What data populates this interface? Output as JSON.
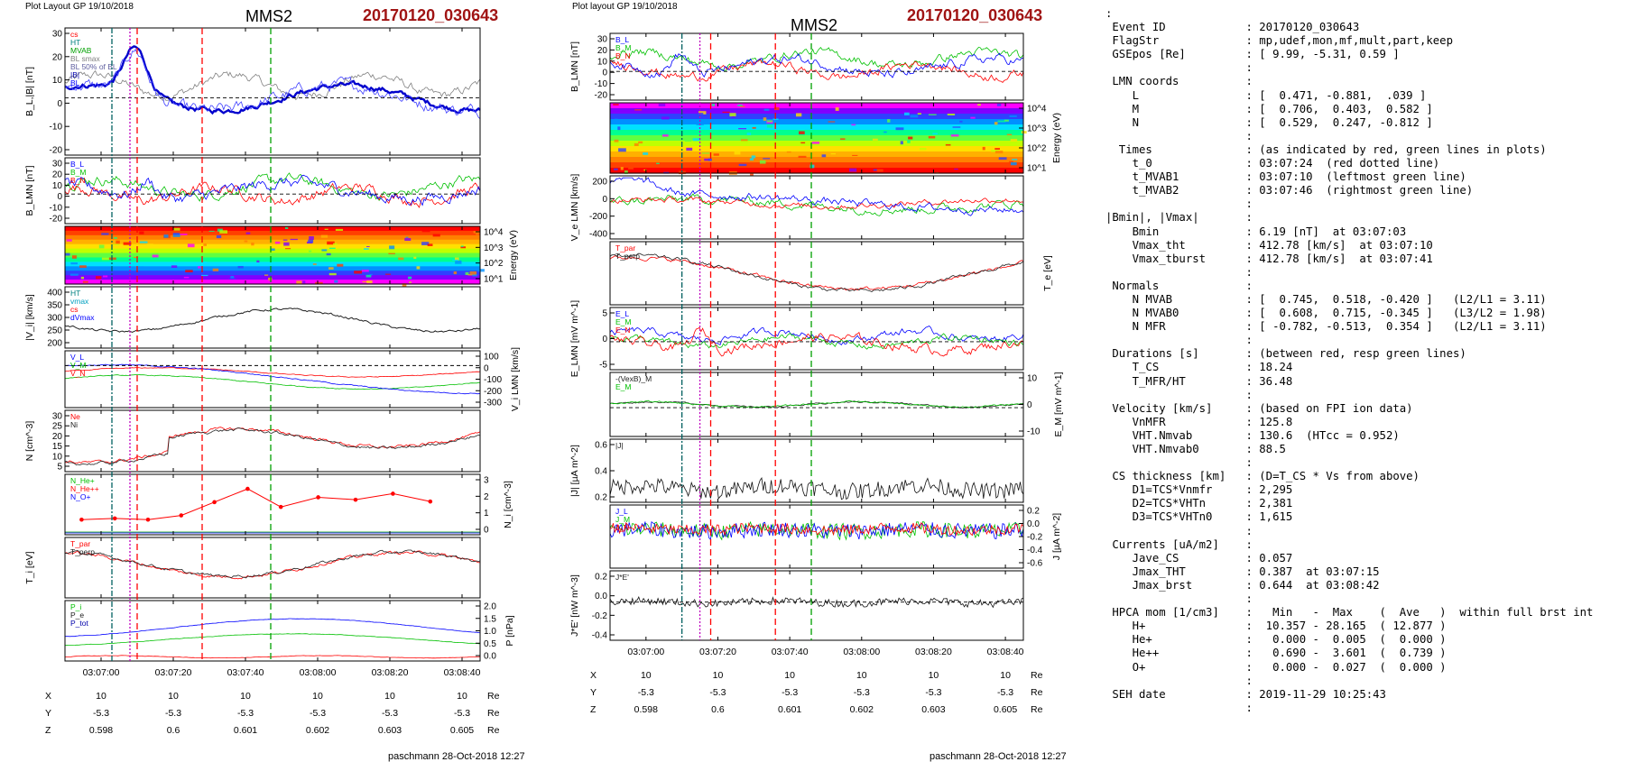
{
  "header": {
    "left_layout_label": "Plot Layout GP 19/10/2018",
    "middle_layout_label": "Plot layout GP 19/10/2018",
    "spacecraft": "MMS2",
    "event": "20170120_030643"
  },
  "footer": {
    "signature": "paschmann 28-Oct-2018 12:27"
  },
  "orbit_table": {
    "rows": [
      {
        "label": "X",
        "values": [
          "10",
          "10",
          "10",
          "10",
          "10",
          "10"
        ],
        "unit": "Re"
      },
      {
        "label": "Y",
        "values": [
          "-5.3",
          "-5.3",
          "-5.3",
          "-5.3",
          "-5.3",
          "-5.3"
        ],
        "unit": "Re"
      },
      {
        "label": "Z",
        "values": [
          "0.598",
          "0.6",
          "0.601",
          "0.602",
          "0.603",
          "0.605"
        ],
        "unit": "Re"
      }
    ]
  },
  "colors": {
    "event_red": "#a01414",
    "blue": "#0000ff",
    "red": "#ff0000",
    "green": "#00c000",
    "gray": "#808080"
  },
  "chart_data": [
    {
      "type": "line",
      "figure": "left",
      "x_axis": {
        "ticks": [
          "03:07:00",
          "03:07:20",
          "03:07:40",
          "03:08:00",
          "03:08:20",
          "03:08:40"
        ]
      },
      "markers": [
        {
          "kind": "dash-dot",
          "color": "#006060",
          "time": "03:07:03"
        },
        {
          "kind": "dotted",
          "color": "#c000c0",
          "time": "03:07:08"
        },
        {
          "kind": "dashed",
          "color": "#ff0000",
          "time": "03:07:10"
        },
        {
          "kind": "dashed",
          "color": "#ff0000",
          "time": "03:07:28"
        },
        {
          "kind": "dashed",
          "color": "#00a000",
          "time": "03:07:47"
        }
      ],
      "panels": [
        {
          "name": "b-magnitude",
          "ylabel": "B_L,|B| [nT]",
          "yticks": [
            "30",
            "20",
            "10",
            "0",
            "-10",
            "-20"
          ],
          "legend": [
            "cs",
            "HT",
            "MVAB",
            "BL smax",
            "BL 50% of BL",
            "|B|",
            "BL"
          ]
        },
        {
          "name": "b-lmn",
          "ylabel": "B_LMN [nT]",
          "yticks": [
            "30",
            "20",
            "10",
            "0",
            "-10",
            "-20"
          ],
          "legend": [
            "B_L",
            "B_M",
            "B_N"
          ]
        },
        {
          "name": "ion-spectrogram",
          "ylabel": "Energy (eV)",
          "yticks": [
            "10^4",
            "10^3",
            "10^2",
            "10^1"
          ]
        },
        {
          "name": "vi-magnitude",
          "ylabel": "|V_i| [km/s]",
          "yticks": [
            "400",
            "350",
            "300",
            "250",
            "200"
          ],
          "legend": [
            "HT",
            "vmax",
            "cs",
            "dVmax"
          ]
        },
        {
          "name": "vi-lmn",
          "ylabel": "V_i LMN [km/s]",
          "yticks": [
            "100",
            "0",
            "-100",
            "-200",
            "-300"
          ],
          "legend": [
            "V_L",
            "V_M",
            "V_N"
          ]
        },
        {
          "name": "density",
          "ylabel": "N [cm^-3]",
          "yticks": [
            "30",
            "25",
            "20",
            "15",
            "10",
            "5"
          ],
          "legend": [
            "Ne",
            "Ni"
          ]
        },
        {
          "name": "hpca-density",
          "ylabel": "N_i [cm^-3]",
          "yticks": [
            "3",
            "2",
            "1",
            "0"
          ],
          "legend": [
            "N_He+",
            "N_He++",
            "N_O+"
          ]
        },
        {
          "name": "ion-temperature",
          "ylabel": "T_i [eV]",
          "legend": [
            "T_par",
            "T_perp"
          ]
        },
        {
          "name": "pressure",
          "ylabel": "P [nPa]",
          "yticks": [
            "2.0",
            "1.5",
            "1.0",
            "0.5",
            "0.0"
          ],
          "legend": [
            "P_i",
            "P_e",
            "P_tot"
          ]
        }
      ]
    },
    {
      "type": "line",
      "figure": "middle",
      "x_axis": {
        "ticks": [
          "03:07:00",
          "03:07:20",
          "03:07:40",
          "03:08:00",
          "03:08:20",
          "03:08:40"
        ]
      },
      "markers": [
        {
          "kind": "dash-dot",
          "color": "#006060",
          "time": "03:07:10"
        },
        {
          "kind": "dotted",
          "color": "#c000c0",
          "time": "03:07:15"
        },
        {
          "kind": "dashed",
          "color": "#ff0000",
          "time": "03:07:18"
        },
        {
          "kind": "dashed",
          "color": "#ff0000",
          "time": "03:07:36"
        },
        {
          "kind": "dashed",
          "color": "#00a000",
          "time": "03:07:46"
        }
      ],
      "panels": [
        {
          "name": "b-lmn",
          "ylabel": "B_LMN [nT]",
          "yticks": [
            "30",
            "20",
            "10",
            "0",
            "-10",
            "-20"
          ],
          "legend": [
            "B_L",
            "B_M",
            "B_N"
          ]
        },
        {
          "name": "electron-spectrogram",
          "ylabel": "Energy (eV)",
          "yticks": [
            "10^4",
            "10^3",
            "10^2",
            "10^1"
          ]
        },
        {
          "name": "ve-lmn",
          "ylabel": "V_e LMN [km/s]",
          "yticks": [
            "200",
            "0",
            "-200",
            "-400"
          ]
        },
        {
          "name": "electron-temperature",
          "ylabel": "T_e [eV]",
          "legend": [
            "T_par",
            "T_perp"
          ]
        },
        {
          "name": "e-lmn",
          "ylabel": "E_LMN [mV m^-1]",
          "yticks": [
            "5",
            "0",
            "-5"
          ],
          "legend": [
            "E_L",
            "E_M",
            "E_N"
          ]
        },
        {
          "name": "em",
          "ylabel": "E_M [mV m^-1]",
          "yticks": [
            "10",
            "0",
            "-10"
          ],
          "legend": [
            "-(VexB)_M",
            "E_M"
          ]
        },
        {
          "name": "j-magnitude",
          "ylabel": "|J| [µA m^-2]",
          "yticks": [
            "0.6",
            "0.4",
            "0.2"
          ],
          "legend": [
            "|J|"
          ]
        },
        {
          "name": "j-lmn",
          "ylabel": "J [µA m^-2]",
          "yticks": [
            "0.2",
            "0.0",
            "-0.2",
            "-0.4",
            "-0.6"
          ],
          "legend": [
            "J_L",
            "J_M",
            "J_N"
          ]
        },
        {
          "name": "j-dot-e",
          "ylabel": "J*E' [nW m^-3]",
          "yticks": [
            "0.2",
            "0.0",
            "-0.2",
            "-0.4"
          ],
          "legend": [
            "J*E'"
          ]
        }
      ]
    }
  ],
  "info": {
    "lines": [
      ":",
      " Event ID            : 20170120_030643",
      " FlagStr             : mp,udef,mon,mf,mult,part,keep",
      " GSEpos [Re]         : [ 9.99, -5.31, 0.59 ]",
      "                     :",
      " LMN coords          :",
      "    L                : [  0.471, -0.881,  .039 ]",
      "    M                : [  0.706,  0.403,  0.582 ]",
      "    N                : [  0.529,  0.247, -0.812 ]",
      "                     :",
      "  Times              : (as indicated by red, green lines in plots)",
      "    t_0              : 03:07:24  (red dotted line)",
      "    t_MVAB1          : 03:07:10  (leftmost green line)",
      "    t_MVAB2          : 03:07:46  (rightmost green line)",
      "                     :",
      "|Bmin|, |Vmax|       :",
      "    Bmin             : 6.19 [nT]  at 03:07:03",
      "    Vmax_tht         : 412.78 [km/s]  at 03:07:10",
      "    Vmax_tburst      : 412.78 [km/s]  at 03:07:41",
      "                     :",
      " Normals             :",
      "    N MVAB           : [  0.745,  0.518, -0.420 ]   (L2/L1 = 3.11)",
      "    N MVAB0          : [  0.608,  0.715, -0.345 ]   (L3/L2 = 1.98)",
      "    N MFR            : [ -0.782, -0.513,  0.354 ]   (L2/L1 = 3.11)",
      "                     :",
      " Durations [s]       : (between red, resp green lines)",
      "    T_CS             : 18.24",
      "    T_MFR/HT         : 36.48",
      "                     :",
      " Velocity [km/s]     : (based on FPI ion data)",
      "    VnMFR            : 125.8",
      "    VHT.Nmvab        : 130.6  (HTcc = 0.952)",
      "    VHT.Nmvab0       : 88.5",
      "                     :",
      " CS thickness [km]   : (D=T_CS * Vs from above)",
      "    D1=TCS*Vnmfr     : 2,295",
      "    D2=TCS*VHTn      : 2,381",
      "    D3=TCS*VHTn0     : 1,615",
      "                     :",
      " Currents [uA/m2]    :",
      "    Jave_CS          : 0.057",
      "    Jmax_THT         : 0.387  at 03:07:15",
      "    Jmax_brst        : 0.644  at 03:08:42",
      "                     :",
      " HPCA mom [1/cm3]    :   Min   -  Max    (  Ave   )  within full brst int",
      "    H+               :  10.357 - 28.165  ( 12.877 )",
      "    He+              :   0.000 -  0.005  (  0.000 )",
      "    He++             :   0.690 -  3.601  (  0.739 )",
      "    O+               :   0.000 -  0.027  (  0.000 )",
      "                     :",
      " SEH date            : 2019-11-29 10:25:43",
      "                     :"
    ]
  }
}
